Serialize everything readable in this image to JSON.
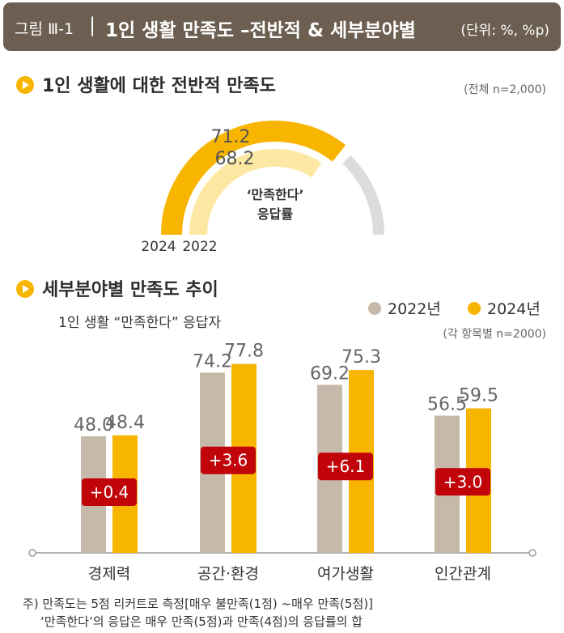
{
  "header": {
    "figure_label": "그림 Ⅲ-1",
    "separator": "|",
    "title": "1인 생활 만족도 –전반적 & 세부분야별",
    "unit": "(단위: %, %p)"
  },
  "section1": {
    "title": "1인 생활에 대한 전반적 만족도",
    "note": "(전체 n=2,000)",
    "center_label_line1": "‘만족한다’",
    "center_label_line2": "응답률",
    "year_labels": [
      "2024",
      "2022"
    ]
  },
  "section2": {
    "title": "세부분야별 만족도 추이",
    "subtitle": "1인 생활 “만족한다” 응답자",
    "note": "(각 항목별 n=2000)"
  },
  "colors": {
    "y2022": "#c7b9a9",
    "y2024": "#f7b500",
    "y2022_arc": "#fde8a3",
    "track": "#dcdcdc",
    "diff_box": "#c0040a",
    "axis": "#999999"
  },
  "chart_data": [
    {
      "type": "gauge",
      "title": "1인 생활에 대한 전반적 만족도",
      "series": [
        {
          "name": "2024",
          "value": 71.2
        },
        {
          "name": "2022",
          "value": 68.2
        }
      ],
      "value_labels": [
        "71.2",
        "68.2"
      ],
      "max": 100
    },
    {
      "type": "bar",
      "title": "세부분야별 만족도 추이",
      "categories": [
        "경제력",
        "공간·환경",
        "여가생활",
        "인간관계"
      ],
      "series": [
        {
          "name": "2022년",
          "values": [
            48.0,
            74.2,
            69.2,
            56.5
          ],
          "labels": [
            "48.0",
            "74.2",
            "69.2",
            "56.5"
          ]
        },
        {
          "name": "2024년",
          "values": [
            48.4,
            77.8,
            75.3,
            59.5
          ],
          "labels": [
            "48.4",
            "77.8",
            "75.3",
            "59.5"
          ]
        }
      ],
      "differences": [
        "+0.4",
        "+3.6",
        "+6.1",
        "+3.0"
      ],
      "legend": [
        "2022년",
        "2024년"
      ],
      "ylim": [
        0,
        100
      ]
    }
  ],
  "footnote": {
    "line1": "주) 만족도는 5점 리커트로 측정[매우 불만족(1점) ~매우 만족(5점)]",
    "line2": "‘만족한다’의 응답은 매우 만족(5점)과 만족(4점)의 응답률의 합"
  }
}
